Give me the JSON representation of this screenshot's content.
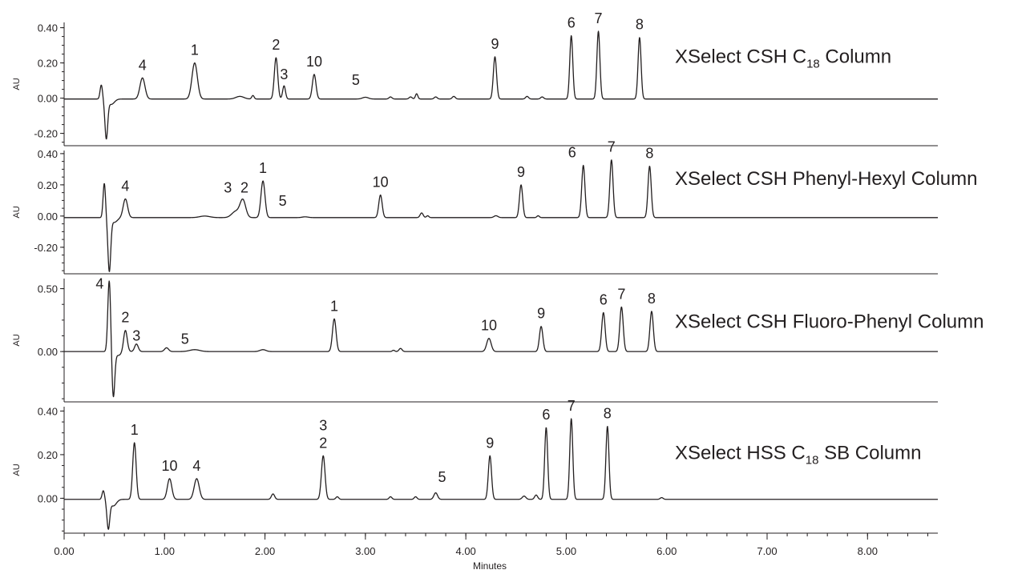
{
  "chart_data": {
    "type": "line",
    "x_axis": {
      "label": "Minutes",
      "range": [
        0,
        8.7
      ],
      "ticks": [
        0,
        1,
        2,
        3,
        4,
        5,
        6,
        7,
        8
      ],
      "tick_labels": [
        "0.00",
        "1.00",
        "2.00",
        "3.00",
        "4.00",
        "5.00",
        "6.00",
        "7.00",
        "8.00"
      ],
      "minor_tick_step": 0.2
    },
    "panels": [
      {
        "title": "XSelect CSH C",
        "title_subscript": "18",
        "title_suffix": " Column",
        "ylabel": "AU",
        "ylim": [
          -0.27,
          0.43
        ],
        "yticks": [
          0.4,
          0.2,
          0.0,
          -0.2
        ],
        "ytick_labels": [
          "0.40",
          "0.20",
          "0.00",
          "-0.20"
        ],
        "baseline": -0.005,
        "dip": {
          "x": 0.4,
          "positive": 0.08,
          "negative": -0.22
        },
        "peaks": [
          {
            "label": "4",
            "x": 0.78,
            "height": 0.12,
            "width": 0.025
          },
          {
            "label": "1",
            "x": 1.3,
            "height": 0.205,
            "width": 0.027
          },
          {
            "label": "2",
            "x": 2.11,
            "height": 0.235,
            "width": 0.017
          },
          {
            "label": "3",
            "x": 2.19,
            "height": 0.075,
            "width": 0.014
          },
          {
            "label": "10",
            "x": 2.49,
            "height": 0.14,
            "width": 0.018
          },
          {
            "label": "5",
            "x": 3.0,
            "height": 0.01,
            "width": 0.03
          },
          {
            "label": "9",
            "x": 4.29,
            "height": 0.24,
            "width": 0.016
          },
          {
            "label": "6",
            "x": 5.05,
            "height": 0.36,
            "width": 0.015
          },
          {
            "label": "7",
            "x": 5.32,
            "height": 0.385,
            "width": 0.015
          },
          {
            "label": "8",
            "x": 5.73,
            "height": 0.35,
            "width": 0.015
          }
        ],
        "minor_peaks": [
          {
            "x": 1.75,
            "height": 0.015,
            "width": 0.04
          },
          {
            "x": 1.88,
            "height": 0.02,
            "width": 0.012
          },
          {
            "x": 3.25,
            "height": 0.012,
            "width": 0.015
          },
          {
            "x": 3.45,
            "height": 0.012,
            "width": 0.015
          },
          {
            "x": 3.51,
            "height": 0.03,
            "width": 0.012
          },
          {
            "x": 3.7,
            "height": 0.012,
            "width": 0.015
          },
          {
            "x": 3.88,
            "height": 0.015,
            "width": 0.015
          },
          {
            "x": 4.61,
            "height": 0.015,
            "width": 0.015
          },
          {
            "x": 4.76,
            "height": 0.012,
            "width": 0.015
          }
        ]
      },
      {
        "title": "XSelect CSH Phenyl-Hexyl Column",
        "title_subscript": "",
        "title_suffix": "",
        "ylabel": "AU",
        "ylim": [
          -0.37,
          0.42
        ],
        "yticks": [
          0.4,
          0.2,
          0.0,
          -0.2
        ],
        "ytick_labels": [
          "0.40",
          "0.20",
          "0.00",
          "-0.20"
        ],
        "baseline": -0.01,
        "dip": {
          "x": 0.43,
          "positive": 0.22,
          "negative": -0.34
        },
        "peaks": [
          {
            "label": "4",
            "x": 0.61,
            "height": 0.12,
            "width": 0.022
          },
          {
            "label": "3",
            "x": 1.71,
            "height": 0.04,
            "width": 0.04
          },
          {
            "label": "2",
            "x": 1.78,
            "height": 0.11,
            "width": 0.028
          },
          {
            "label": "1",
            "x": 1.98,
            "height": 0.235,
            "width": 0.02
          },
          {
            "label": "5",
            "x": 2.4,
            "height": 0.005,
            "width": 0.03
          },
          {
            "label": "10",
            "x": 3.15,
            "height": 0.145,
            "width": 0.017
          },
          {
            "label": "9",
            "x": 4.55,
            "height": 0.21,
            "width": 0.016
          },
          {
            "label": "6",
            "x": 5.17,
            "height": 0.335,
            "width": 0.016
          },
          {
            "label": "7",
            "x": 5.45,
            "height": 0.37,
            "width": 0.016
          },
          {
            "label": "8",
            "x": 5.83,
            "height": 0.33,
            "width": 0.016
          }
        ],
        "minor_peaks": [
          {
            "x": 1.4,
            "height": 0.01,
            "width": 0.05
          },
          {
            "x": 3.56,
            "height": 0.03,
            "width": 0.015
          },
          {
            "x": 3.62,
            "height": 0.012,
            "width": 0.012
          },
          {
            "x": 4.3,
            "height": 0.012,
            "width": 0.02
          },
          {
            "x": 4.72,
            "height": 0.012,
            "width": 0.012
          }
        ]
      },
      {
        "title": "XSelect CSH Fluoro-Phenyl Column",
        "title_subscript": "",
        "title_suffix": "",
        "ylabel": "AU",
        "ylim": [
          -0.4,
          0.58
        ],
        "yticks": [
          0.5,
          0.0
        ],
        "ytick_labels": [
          "0.50",
          "0.00"
        ],
        "baseline": 0.0,
        "dip": {
          "x": 0.47,
          "positive": 0.05,
          "negative": -0.36
        },
        "peaks": [
          {
            "label": "4",
            "x": 0.45,
            "height": 0.53,
            "width": 0.014
          },
          {
            "label": "2",
            "x": 0.61,
            "height": 0.17,
            "width": 0.018
          },
          {
            "label": "3",
            "x": 0.72,
            "height": 0.06,
            "width": 0.018
          },
          {
            "label": "5",
            "x": 1.02,
            "height": 0.03,
            "width": 0.02
          },
          {
            "label": "1",
            "x": 2.69,
            "height": 0.26,
            "width": 0.018
          },
          {
            "label": "10",
            "x": 4.23,
            "height": 0.105,
            "width": 0.022
          },
          {
            "label": "9",
            "x": 4.75,
            "height": 0.2,
            "width": 0.017
          },
          {
            "label": "6",
            "x": 5.37,
            "height": 0.31,
            "width": 0.017
          },
          {
            "label": "7",
            "x": 5.55,
            "height": 0.355,
            "width": 0.017
          },
          {
            "label": "8",
            "x": 5.85,
            "height": 0.32,
            "width": 0.017
          }
        ],
        "minor_peaks": [
          {
            "x": 1.3,
            "height": 0.015,
            "width": 0.05
          },
          {
            "x": 1.98,
            "height": 0.015,
            "width": 0.03
          },
          {
            "x": 3.35,
            "height": 0.025,
            "width": 0.015
          },
          {
            "x": 3.28,
            "height": 0.01,
            "width": 0.012
          }
        ]
      },
      {
        "title": "XSelect HSS C",
        "title_subscript": "18",
        "title_suffix": " SB Column",
        "ylabel": "AU",
        "ylim": [
          -0.16,
          0.42
        ],
        "yticks": [
          0.4,
          0.2,
          0.0
        ],
        "ytick_labels": [
          "0.40",
          "0.20",
          "0.00"
        ],
        "baseline": -0.005,
        "dip": {
          "x": 0.42,
          "positive": 0.04,
          "negative": -0.13
        },
        "peaks": [
          {
            "label": "1",
            "x": 0.7,
            "height": 0.26,
            "width": 0.017
          },
          {
            "label": "10",
            "x": 1.05,
            "height": 0.095,
            "width": 0.022
          },
          {
            "label": "4",
            "x": 1.32,
            "height": 0.095,
            "width": 0.025
          },
          {
            "label": "3\n2",
            "x": 2.58,
            "height": 0.2,
            "width": 0.018
          },
          {
            "label": "5",
            "x": 3.7,
            "height": 0.03,
            "width": 0.018
          },
          {
            "label": "9",
            "x": 4.24,
            "height": 0.2,
            "width": 0.016
          },
          {
            "label": "6",
            "x": 4.8,
            "height": 0.33,
            "width": 0.015
          },
          {
            "label": "7",
            "x": 5.05,
            "height": 0.37,
            "width": 0.015
          },
          {
            "label": "8",
            "x": 5.41,
            "height": 0.335,
            "width": 0.015
          }
        ],
        "minor_peaks": [
          {
            "x": 2.08,
            "height": 0.025,
            "width": 0.016
          },
          {
            "x": 2.72,
            "height": 0.012,
            "width": 0.014
          },
          {
            "x": 3.25,
            "height": 0.012,
            "width": 0.014
          },
          {
            "x": 3.5,
            "height": 0.012,
            "width": 0.014
          },
          {
            "x": 4.58,
            "height": 0.015,
            "width": 0.018
          },
          {
            "x": 4.7,
            "height": 0.02,
            "width": 0.015
          },
          {
            "x": 5.95,
            "height": 0.008,
            "width": 0.015
          }
        ]
      }
    ],
    "grid": false,
    "legend": "none",
    "colors": {
      "trace": "#231f20",
      "axis": "#231f20",
      "background": "#ffffff"
    }
  }
}
